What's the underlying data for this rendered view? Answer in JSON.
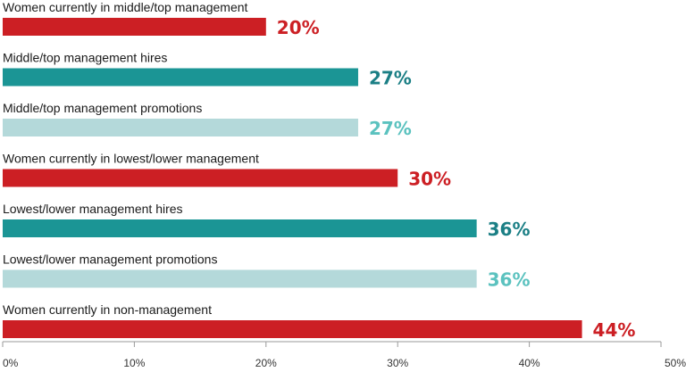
{
  "chart_data": {
    "type": "bar",
    "orientation": "horizontal",
    "categories": [
      "Women currently in middle/top management",
      "Middle/top management hires",
      "Middle/top management promotions",
      "Women currently in lowest/lower management",
      "Lowest/lower management hires",
      "Lowest/lower management promotions",
      "Women currently in non-management"
    ],
    "values": [
      20,
      27,
      27,
      30,
      36,
      36,
      44
    ],
    "value_labels": [
      "20%",
      "27%",
      "27%",
      "30%",
      "36%",
      "36%",
      "44%"
    ],
    "bar_colors": [
      "#cc1f24",
      "#1b9595",
      "#b4d9da",
      "#cc1f24",
      "#1b9595",
      "#b4d9da",
      "#cc1f24"
    ],
    "label_colors": [
      "#cc1f24",
      "#1b7f85",
      "#5bc2bf",
      "#cc1f24",
      "#1b7f85",
      "#5bc2bf",
      "#cc1f24"
    ],
    "xlim": [
      0,
      50
    ],
    "x_ticks": [
      0,
      10,
      20,
      30,
      40,
      50
    ],
    "x_tick_labels": [
      "0%",
      "10%",
      "20%",
      "30%",
      "40%",
      "50%"
    ],
    "grid": false,
    "legend": "none"
  }
}
